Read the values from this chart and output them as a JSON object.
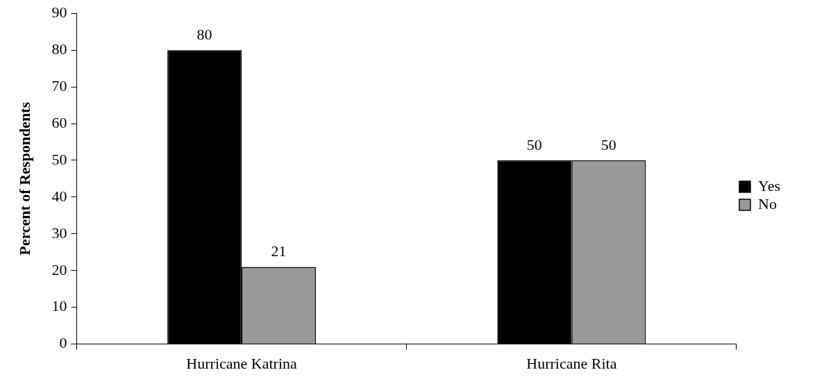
{
  "chart_data": {
    "type": "bar",
    "ylabel": "Percent of Respondents",
    "categories": [
      "Hurricane Katrina",
      "Hurricane Rita"
    ],
    "series": [
      {
        "name": "Yes",
        "color": "#000000",
        "values": [
          80,
          50
        ]
      },
      {
        "name": "No",
        "color": "#999999",
        "values": [
          21,
          50
        ]
      }
    ],
    "ylim": [
      0,
      90
    ],
    "yticks": [
      0,
      10,
      20,
      30,
      40,
      50,
      60,
      70,
      80,
      90
    ],
    "grid": false,
    "legend": "right",
    "data_labels": true
  }
}
